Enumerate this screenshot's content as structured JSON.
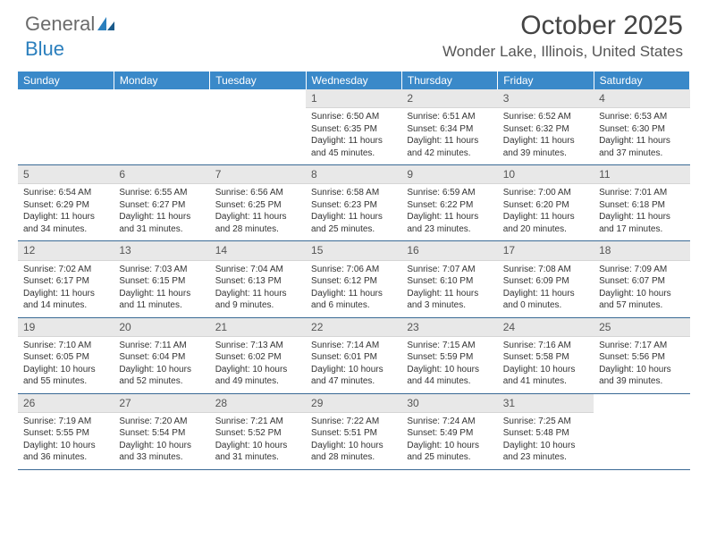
{
  "logo": {
    "text1": "General",
    "text2": "Blue"
  },
  "title": "October 2025",
  "location": "Wonder Lake, Illinois, United States",
  "colors": {
    "header_bg": "#3a89c9",
    "header_text": "#ffffff",
    "daynum_bg": "#e8e8e8",
    "border": "#3a6a95",
    "logo_gray": "#6b6b6b",
    "logo_blue": "#2b7fbd"
  },
  "weekdays": [
    "Sunday",
    "Monday",
    "Tuesday",
    "Wednesday",
    "Thursday",
    "Friday",
    "Saturday"
  ],
  "weeks": [
    [
      {
        "empty": true
      },
      {
        "empty": true
      },
      {
        "empty": true
      },
      {
        "day": "1",
        "sunrise": "Sunrise: 6:50 AM",
        "sunset": "Sunset: 6:35 PM",
        "daylight": "Daylight: 11 hours and 45 minutes."
      },
      {
        "day": "2",
        "sunrise": "Sunrise: 6:51 AM",
        "sunset": "Sunset: 6:34 PM",
        "daylight": "Daylight: 11 hours and 42 minutes."
      },
      {
        "day": "3",
        "sunrise": "Sunrise: 6:52 AM",
        "sunset": "Sunset: 6:32 PM",
        "daylight": "Daylight: 11 hours and 39 minutes."
      },
      {
        "day": "4",
        "sunrise": "Sunrise: 6:53 AM",
        "sunset": "Sunset: 6:30 PM",
        "daylight": "Daylight: 11 hours and 37 minutes."
      }
    ],
    [
      {
        "day": "5",
        "sunrise": "Sunrise: 6:54 AM",
        "sunset": "Sunset: 6:29 PM",
        "daylight": "Daylight: 11 hours and 34 minutes."
      },
      {
        "day": "6",
        "sunrise": "Sunrise: 6:55 AM",
        "sunset": "Sunset: 6:27 PM",
        "daylight": "Daylight: 11 hours and 31 minutes."
      },
      {
        "day": "7",
        "sunrise": "Sunrise: 6:56 AM",
        "sunset": "Sunset: 6:25 PM",
        "daylight": "Daylight: 11 hours and 28 minutes."
      },
      {
        "day": "8",
        "sunrise": "Sunrise: 6:58 AM",
        "sunset": "Sunset: 6:23 PM",
        "daylight": "Daylight: 11 hours and 25 minutes."
      },
      {
        "day": "9",
        "sunrise": "Sunrise: 6:59 AM",
        "sunset": "Sunset: 6:22 PM",
        "daylight": "Daylight: 11 hours and 23 minutes."
      },
      {
        "day": "10",
        "sunrise": "Sunrise: 7:00 AM",
        "sunset": "Sunset: 6:20 PM",
        "daylight": "Daylight: 11 hours and 20 minutes."
      },
      {
        "day": "11",
        "sunrise": "Sunrise: 7:01 AM",
        "sunset": "Sunset: 6:18 PM",
        "daylight": "Daylight: 11 hours and 17 minutes."
      }
    ],
    [
      {
        "day": "12",
        "sunrise": "Sunrise: 7:02 AM",
        "sunset": "Sunset: 6:17 PM",
        "daylight": "Daylight: 11 hours and 14 minutes."
      },
      {
        "day": "13",
        "sunrise": "Sunrise: 7:03 AM",
        "sunset": "Sunset: 6:15 PM",
        "daylight": "Daylight: 11 hours and 11 minutes."
      },
      {
        "day": "14",
        "sunrise": "Sunrise: 7:04 AM",
        "sunset": "Sunset: 6:13 PM",
        "daylight": "Daylight: 11 hours and 9 minutes."
      },
      {
        "day": "15",
        "sunrise": "Sunrise: 7:06 AM",
        "sunset": "Sunset: 6:12 PM",
        "daylight": "Daylight: 11 hours and 6 minutes."
      },
      {
        "day": "16",
        "sunrise": "Sunrise: 7:07 AM",
        "sunset": "Sunset: 6:10 PM",
        "daylight": "Daylight: 11 hours and 3 minutes."
      },
      {
        "day": "17",
        "sunrise": "Sunrise: 7:08 AM",
        "sunset": "Sunset: 6:09 PM",
        "daylight": "Daylight: 11 hours and 0 minutes."
      },
      {
        "day": "18",
        "sunrise": "Sunrise: 7:09 AM",
        "sunset": "Sunset: 6:07 PM",
        "daylight": "Daylight: 10 hours and 57 minutes."
      }
    ],
    [
      {
        "day": "19",
        "sunrise": "Sunrise: 7:10 AM",
        "sunset": "Sunset: 6:05 PM",
        "daylight": "Daylight: 10 hours and 55 minutes."
      },
      {
        "day": "20",
        "sunrise": "Sunrise: 7:11 AM",
        "sunset": "Sunset: 6:04 PM",
        "daylight": "Daylight: 10 hours and 52 minutes."
      },
      {
        "day": "21",
        "sunrise": "Sunrise: 7:13 AM",
        "sunset": "Sunset: 6:02 PM",
        "daylight": "Daylight: 10 hours and 49 minutes."
      },
      {
        "day": "22",
        "sunrise": "Sunrise: 7:14 AM",
        "sunset": "Sunset: 6:01 PM",
        "daylight": "Daylight: 10 hours and 47 minutes."
      },
      {
        "day": "23",
        "sunrise": "Sunrise: 7:15 AM",
        "sunset": "Sunset: 5:59 PM",
        "daylight": "Daylight: 10 hours and 44 minutes."
      },
      {
        "day": "24",
        "sunrise": "Sunrise: 7:16 AM",
        "sunset": "Sunset: 5:58 PM",
        "daylight": "Daylight: 10 hours and 41 minutes."
      },
      {
        "day": "25",
        "sunrise": "Sunrise: 7:17 AM",
        "sunset": "Sunset: 5:56 PM",
        "daylight": "Daylight: 10 hours and 39 minutes."
      }
    ],
    [
      {
        "day": "26",
        "sunrise": "Sunrise: 7:19 AM",
        "sunset": "Sunset: 5:55 PM",
        "daylight": "Daylight: 10 hours and 36 minutes."
      },
      {
        "day": "27",
        "sunrise": "Sunrise: 7:20 AM",
        "sunset": "Sunset: 5:54 PM",
        "daylight": "Daylight: 10 hours and 33 minutes."
      },
      {
        "day": "28",
        "sunrise": "Sunrise: 7:21 AM",
        "sunset": "Sunset: 5:52 PM",
        "daylight": "Daylight: 10 hours and 31 minutes."
      },
      {
        "day": "29",
        "sunrise": "Sunrise: 7:22 AM",
        "sunset": "Sunset: 5:51 PM",
        "daylight": "Daylight: 10 hours and 28 minutes."
      },
      {
        "day": "30",
        "sunrise": "Sunrise: 7:24 AM",
        "sunset": "Sunset: 5:49 PM",
        "daylight": "Daylight: 10 hours and 25 minutes."
      },
      {
        "day": "31",
        "sunrise": "Sunrise: 7:25 AM",
        "sunset": "Sunset: 5:48 PM",
        "daylight": "Daylight: 10 hours and 23 minutes."
      },
      {
        "empty": true
      }
    ]
  ]
}
